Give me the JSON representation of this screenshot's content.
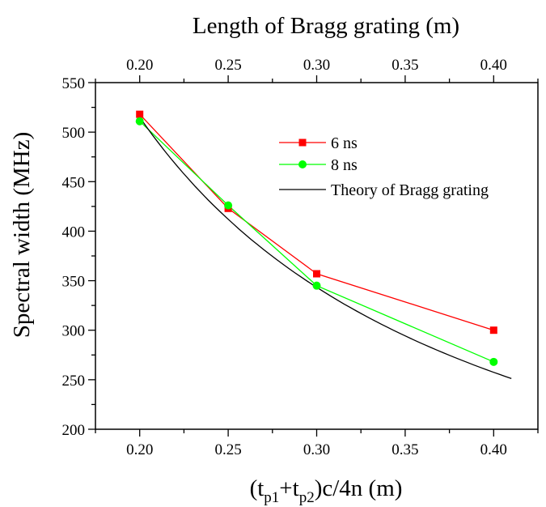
{
  "chart_data": {
    "type": "line",
    "xlabel_bottom": {
      "open": "(t",
      "sub1": "p1",
      "mid": "+t",
      "sub2": "p2",
      "close": ")c/4n (m)"
    },
    "xlabel_top": "Length of Bragg grating (m)",
    "ylabel": "Spectral width (MHz)",
    "xlim": [
      0.175,
      0.425
    ],
    "ylim": [
      200,
      550
    ],
    "xticks": [
      0.2,
      0.25,
      0.3,
      0.35,
      0.4
    ],
    "xtick_labels": [
      "0.20",
      "0.25",
      "0.30",
      "0.35",
      "0.40"
    ],
    "top_xtick_labels": [
      "0.20",
      "0.25",
      "0.30",
      "0.35",
      "0.40"
    ],
    "yticks": [
      200,
      250,
      300,
      350,
      400,
      450,
      500,
      550
    ],
    "ytick_labels": [
      "200",
      "250",
      "300",
      "350",
      "400",
      "450",
      "500",
      "550"
    ],
    "legend_position": "top-right",
    "series": [
      {
        "name": "6 ns",
        "color": "#ff0000",
        "marker": "square",
        "x": [
          0.2,
          0.25,
          0.3,
          0.4
        ],
        "y": [
          518,
          423,
          357,
          300
        ]
      },
      {
        "name": "8 ns",
        "color": "#00ff00",
        "marker": "circle",
        "x": [
          0.2,
          0.25,
          0.3,
          0.4
        ],
        "y": [
          511,
          426,
          345,
          268
        ]
      },
      {
        "name": "Theory of Bragg grating",
        "color": "#000000",
        "marker": "none",
        "formula": "103/x",
        "x_range": [
          0.2,
          0.41
        ]
      }
    ]
  }
}
